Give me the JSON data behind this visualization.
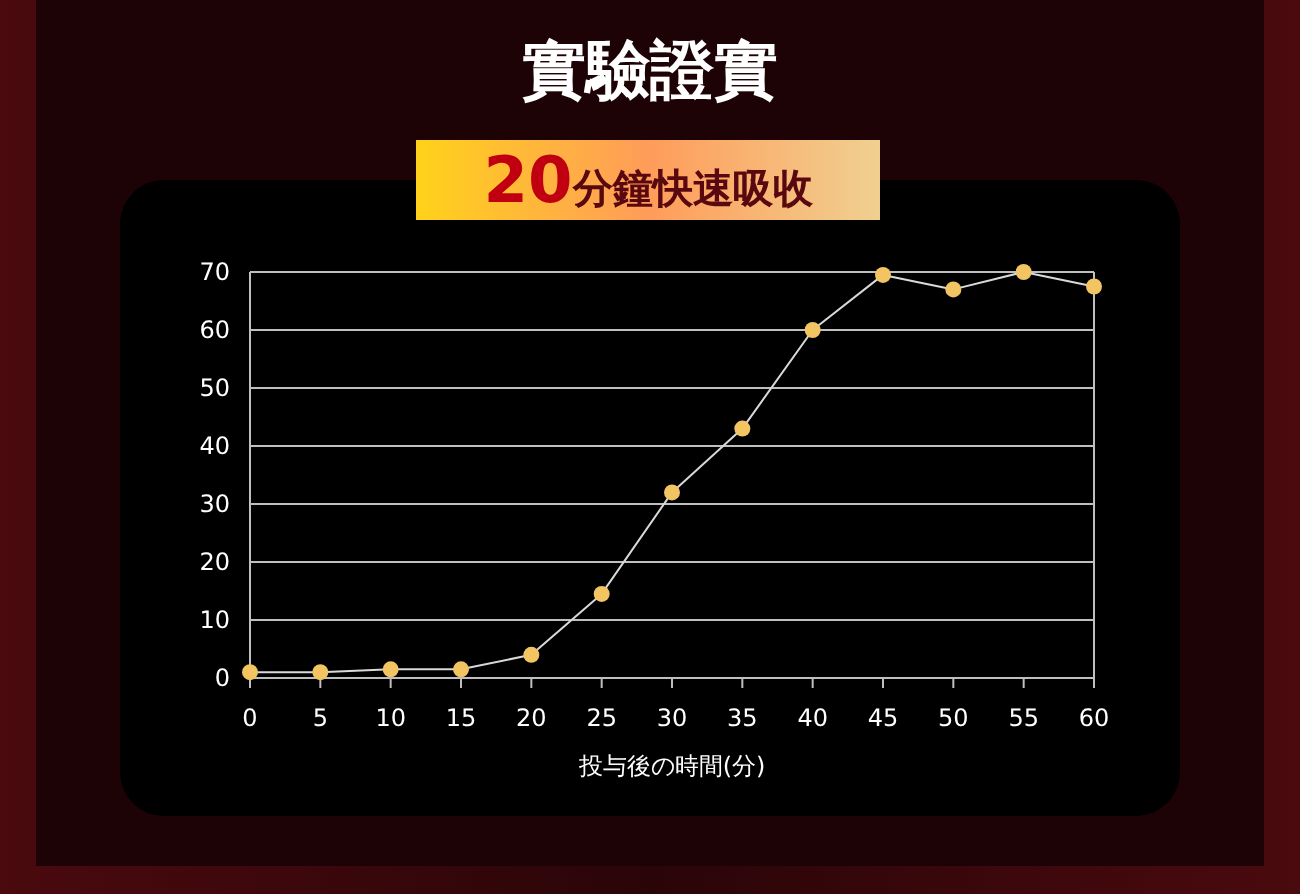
{
  "chart_data": {
    "type": "line",
    "title": "實驗證實",
    "subtitle": "20分鐘快速吸收",
    "xlabel": "投与後の時間(分)",
    "x": [
      0,
      5,
      10,
      15,
      20,
      25,
      30,
      35,
      40,
      45,
      50,
      55,
      60
    ],
    "series": [
      {
        "color": "#f2c462",
        "values": [
          1,
          1,
          1.5,
          1.5,
          4,
          14.5,
          32,
          43,
          60,
          69.5,
          67,
          70,
          67.5
        ]
      }
    ],
    "xlim": [
      0,
      60
    ],
    "xticks": [
      0,
      5,
      10,
      15,
      20,
      25,
      30,
      35,
      40,
      45,
      50,
      55,
      60
    ],
    "ylim": [
      0,
      70
    ],
    "yticks": [
      0,
      10,
      20,
      30,
      40,
      50,
      60,
      70
    ],
    "grid": "y",
    "marker": "circle",
    "line_style": "solid"
  }
}
